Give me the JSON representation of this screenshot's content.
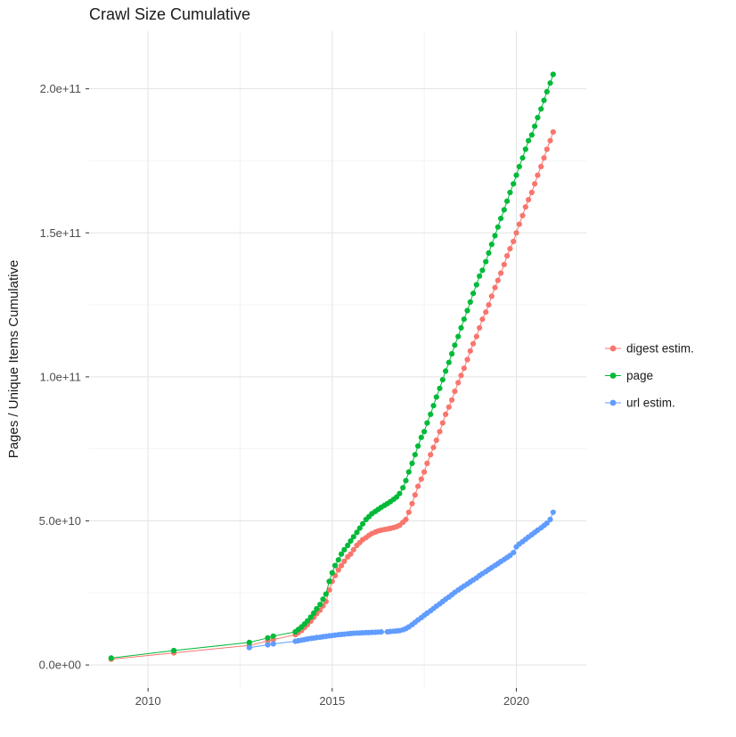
{
  "title": "Crawl Size Cumulative",
  "legend": {
    "items": [
      {
        "label": "digest estim.",
        "color": "#F8766D"
      },
      {
        "label": "page",
        "color": "#00BA38"
      },
      {
        "label": "url estim.",
        "color": "#619CFF"
      }
    ]
  },
  "colors": {
    "grid_major": "#e3e3e3",
    "grid_minor": "#f2f2f2",
    "tick": "#333333",
    "tick_text": "#4d4d4d"
  },
  "chart_data": {
    "type": "scatter",
    "title": "Crawl Size Cumulative",
    "xlabel": "",
    "ylabel": "Pages / Unique Items Cumulative",
    "y_unit": 1000000000,
    "x_domain": [
      2008.4,
      2021.9
    ],
    "y_domain": [
      -8,
      220
    ],
    "x_ticks": [
      {
        "v": 2010,
        "label": "2010"
      },
      {
        "v": 2015,
        "label": "2015"
      },
      {
        "v": 2020,
        "label": "2020"
      }
    ],
    "y_ticks": [
      {
        "v": 0,
        "label": "0.0e+00"
      },
      {
        "v": 50,
        "label": "5.0e+10"
      },
      {
        "v": 100,
        "label": "1.0e+11"
      },
      {
        "v": 150,
        "label": "1.5e+11"
      },
      {
        "v": 200,
        "label": "2.0e+11"
      }
    ],
    "x_minor": [
      2012.5,
      2017.5
    ],
    "y_minor": [
      25,
      75,
      125,
      175
    ],
    "grid": true,
    "legend_position": "right",
    "series": [
      {
        "name": "digest estim.",
        "color": "#F8766D",
        "points": [
          [
            2009.0,
            2
          ],
          [
            2010.7,
            4.2
          ],
          [
            2012.75,
            6.8
          ],
          [
            2013.25,
            8.3
          ],
          [
            2013.4,
            8.8
          ],
          [
            2014.0,
            10.5
          ],
          [
            2014.08,
            11.2
          ],
          [
            2014.17,
            12
          ],
          [
            2014.25,
            13
          ],
          [
            2014.33,
            14
          ],
          [
            2014.42,
            15.2
          ],
          [
            2014.5,
            16.5
          ],
          [
            2014.58,
            17.8
          ],
          [
            2014.67,
            19
          ],
          [
            2014.75,
            20.5
          ],
          [
            2014.83,
            22
          ],
          [
            2014.92,
            26
          ],
          [
            2015.0,
            29
          ],
          [
            2015.08,
            31
          ],
          [
            2015.17,
            33
          ],
          [
            2015.25,
            34.5
          ],
          [
            2015.33,
            36
          ],
          [
            2015.42,
            37.5
          ],
          [
            2015.5,
            38.5
          ],
          [
            2015.58,
            40
          ],
          [
            2015.67,
            41.5
          ],
          [
            2015.75,
            42.5
          ],
          [
            2015.83,
            43.5
          ],
          [
            2015.92,
            44.2
          ],
          [
            2016.0,
            45
          ],
          [
            2016.08,
            45.6
          ],
          [
            2016.17,
            46.1
          ],
          [
            2016.25,
            46.5
          ],
          [
            2016.33,
            46.8
          ],
          [
            2016.42,
            47
          ],
          [
            2016.5,
            47.2
          ],
          [
            2016.58,
            47.4
          ],
          [
            2016.67,
            47.7
          ],
          [
            2016.75,
            48
          ],
          [
            2016.83,
            48.5
          ],
          [
            2016.92,
            49.5
          ],
          [
            2017.0,
            50.5
          ],
          [
            2017.08,
            53
          ],
          [
            2017.17,
            56
          ],
          [
            2017.25,
            59
          ],
          [
            2017.33,
            62
          ],
          [
            2017.42,
            64.5
          ],
          [
            2017.5,
            67
          ],
          [
            2017.58,
            70
          ],
          [
            2017.67,
            73
          ],
          [
            2017.75,
            75.5
          ],
          [
            2017.83,
            78
          ],
          [
            2017.92,
            81
          ],
          [
            2018.0,
            84
          ],
          [
            2018.08,
            87
          ],
          [
            2018.17,
            89.5
          ],
          [
            2018.25,
            92
          ],
          [
            2018.33,
            95
          ],
          [
            2018.42,
            98
          ],
          [
            2018.5,
            100.5
          ],
          [
            2018.58,
            103
          ],
          [
            2018.67,
            106
          ],
          [
            2018.75,
            109
          ],
          [
            2018.83,
            111.5
          ],
          [
            2018.92,
            114
          ],
          [
            2019.0,
            117
          ],
          [
            2019.08,
            120
          ],
          [
            2019.17,
            122.5
          ],
          [
            2019.25,
            125
          ],
          [
            2019.33,
            128
          ],
          [
            2019.42,
            131
          ],
          [
            2019.5,
            133.5
          ],
          [
            2019.58,
            136
          ],
          [
            2019.67,
            139
          ],
          [
            2019.75,
            142
          ],
          [
            2019.83,
            144.5
          ],
          [
            2019.92,
            147
          ],
          [
            2020.0,
            150
          ],
          [
            2020.08,
            153
          ],
          [
            2020.17,
            156
          ],
          [
            2020.25,
            159
          ],
          [
            2020.33,
            161.5
          ],
          [
            2020.42,
            164
          ],
          [
            2020.5,
            167
          ],
          [
            2020.58,
            170
          ],
          [
            2020.67,
            173
          ],
          [
            2020.75,
            176
          ],
          [
            2020.83,
            179
          ],
          [
            2020.92,
            182
          ],
          [
            2021.0,
            185
          ]
        ]
      },
      {
        "name": "page",
        "color": "#00BA38",
        "points": [
          [
            2009.0,
            2.4
          ],
          [
            2010.7,
            5
          ],
          [
            2012.75,
            7.8
          ],
          [
            2013.25,
            9.4
          ],
          [
            2013.4,
            10
          ],
          [
            2014.0,
            11.5
          ],
          [
            2014.08,
            12.3
          ],
          [
            2014.17,
            13.2
          ],
          [
            2014.25,
            14.2
          ],
          [
            2014.33,
            15.3
          ],
          [
            2014.42,
            16.6
          ],
          [
            2014.5,
            18
          ],
          [
            2014.58,
            19.5
          ],
          [
            2014.67,
            21
          ],
          [
            2014.75,
            22.8
          ],
          [
            2014.83,
            24.6
          ],
          [
            2014.92,
            29
          ],
          [
            2015.0,
            32
          ],
          [
            2015.08,
            34.5
          ],
          [
            2015.17,
            36.5
          ],
          [
            2015.25,
            38.5
          ],
          [
            2015.33,
            40
          ],
          [
            2015.42,
            41.5
          ],
          [
            2015.5,
            43
          ],
          [
            2015.58,
            44.5
          ],
          [
            2015.67,
            46
          ],
          [
            2015.75,
            47.5
          ],
          [
            2015.83,
            49
          ],
          [
            2015.92,
            50.5
          ],
          [
            2016.0,
            51.5
          ],
          [
            2016.08,
            52.5
          ],
          [
            2016.17,
            53.3
          ],
          [
            2016.25,
            54
          ],
          [
            2016.33,
            54.7
          ],
          [
            2016.42,
            55.4
          ],
          [
            2016.5,
            56
          ],
          [
            2016.58,
            56.7
          ],
          [
            2016.67,
            57.5
          ],
          [
            2016.75,
            58.3
          ],
          [
            2016.83,
            59.5
          ],
          [
            2016.92,
            61.5
          ],
          [
            2017.0,
            64
          ],
          [
            2017.08,
            67
          ],
          [
            2017.17,
            70
          ],
          [
            2017.25,
            73
          ],
          [
            2017.33,
            76
          ],
          [
            2017.42,
            79
          ],
          [
            2017.5,
            81
          ],
          [
            2017.58,
            84
          ],
          [
            2017.67,
            87
          ],
          [
            2017.75,
            90
          ],
          [
            2017.83,
            93
          ],
          [
            2017.92,
            96
          ],
          [
            2018.0,
            99
          ],
          [
            2018.08,
            102
          ],
          [
            2018.17,
            105
          ],
          [
            2018.25,
            108
          ],
          [
            2018.33,
            111
          ],
          [
            2018.42,
            114
          ],
          [
            2018.5,
            117
          ],
          [
            2018.58,
            120
          ],
          [
            2018.67,
            123
          ],
          [
            2018.75,
            126
          ],
          [
            2018.83,
            129
          ],
          [
            2018.92,
            132
          ],
          [
            2019.0,
            135
          ],
          [
            2019.08,
            137
          ],
          [
            2019.17,
            140
          ],
          [
            2019.25,
            143
          ],
          [
            2019.33,
            146
          ],
          [
            2019.42,
            149
          ],
          [
            2019.5,
            152
          ],
          [
            2019.58,
            155
          ],
          [
            2019.67,
            158
          ],
          [
            2019.75,
            161
          ],
          [
            2019.83,
            164
          ],
          [
            2019.92,
            167
          ],
          [
            2020.0,
            170
          ],
          [
            2020.08,
            173
          ],
          [
            2020.17,
            176
          ],
          [
            2020.25,
            179
          ],
          [
            2020.33,
            182
          ],
          [
            2020.42,
            184
          ],
          [
            2020.5,
            187
          ],
          [
            2020.58,
            190
          ],
          [
            2020.67,
            193
          ],
          [
            2020.75,
            196
          ],
          [
            2020.83,
            199
          ],
          [
            2020.92,
            202
          ],
          [
            2021.0,
            205
          ]
        ]
      },
      {
        "name": "url estim.",
        "color": "#619CFF",
        "points": [
          [
            2012.75,
            6
          ],
          [
            2013.25,
            7
          ],
          [
            2013.4,
            7.3
          ],
          [
            2014.0,
            8.2
          ],
          [
            2014.08,
            8.4
          ],
          [
            2014.17,
            8.6
          ],
          [
            2014.25,
            8.8
          ],
          [
            2014.33,
            9
          ],
          [
            2014.42,
            9.2
          ],
          [
            2014.5,
            9.3
          ],
          [
            2014.58,
            9.5
          ],
          [
            2014.67,
            9.6
          ],
          [
            2014.75,
            9.8
          ],
          [
            2014.83,
            9.9
          ],
          [
            2014.92,
            10.1
          ],
          [
            2015.0,
            10.2
          ],
          [
            2015.08,
            10.35
          ],
          [
            2015.17,
            10.5
          ],
          [
            2015.25,
            10.6
          ],
          [
            2015.33,
            10.7
          ],
          [
            2015.42,
            10.8
          ],
          [
            2015.5,
            10.9
          ],
          [
            2015.58,
            11
          ],
          [
            2015.67,
            11.05
          ],
          [
            2015.75,
            11.1
          ],
          [
            2015.83,
            11.15
          ],
          [
            2015.92,
            11.2
          ],
          [
            2016.0,
            11.25
          ],
          [
            2016.08,
            11.3
          ],
          [
            2016.17,
            11.35
          ],
          [
            2016.25,
            11.4
          ],
          [
            2016.33,
            11.45
          ],
          [
            2016.5,
            11.5
          ],
          [
            2016.58,
            11.6
          ],
          [
            2016.67,
            11.7
          ],
          [
            2016.75,
            11.8
          ],
          [
            2016.83,
            11.9
          ],
          [
            2016.92,
            12.2
          ],
          [
            2017.0,
            12.6
          ],
          [
            2017.08,
            13.2
          ],
          [
            2017.17,
            14
          ],
          [
            2017.25,
            14.8
          ],
          [
            2017.33,
            15.6
          ],
          [
            2017.42,
            16.4
          ],
          [
            2017.5,
            17.2
          ],
          [
            2017.58,
            18
          ],
          [
            2017.67,
            18.8
          ],
          [
            2017.75,
            19.6
          ],
          [
            2017.83,
            20.4
          ],
          [
            2017.92,
            21.2
          ],
          [
            2018.0,
            22
          ],
          [
            2018.08,
            22.8
          ],
          [
            2018.17,
            23.6
          ],
          [
            2018.25,
            24.4
          ],
          [
            2018.33,
            25.2
          ],
          [
            2018.42,
            26
          ],
          [
            2018.5,
            26.7
          ],
          [
            2018.58,
            27.4
          ],
          [
            2018.67,
            28.1
          ],
          [
            2018.75,
            28.8
          ],
          [
            2018.83,
            29.5
          ],
          [
            2018.92,
            30.2
          ],
          [
            2019.0,
            31
          ],
          [
            2019.08,
            31.7
          ],
          [
            2019.17,
            32.4
          ],
          [
            2019.25,
            33.1
          ],
          [
            2019.33,
            33.8
          ],
          [
            2019.42,
            34.5
          ],
          [
            2019.5,
            35.2
          ],
          [
            2019.58,
            35.9
          ],
          [
            2019.67,
            36.6
          ],
          [
            2019.75,
            37.3
          ],
          [
            2019.83,
            38
          ],
          [
            2019.92,
            39
          ],
          [
            2020.0,
            41
          ],
          [
            2020.08,
            42
          ],
          [
            2020.17,
            42.8
          ],
          [
            2020.25,
            43.6
          ],
          [
            2020.33,
            44.4
          ],
          [
            2020.42,
            45.2
          ],
          [
            2020.5,
            46
          ],
          [
            2020.58,
            46.8
          ],
          [
            2020.67,
            47.6
          ],
          [
            2020.75,
            48.4
          ],
          [
            2020.83,
            49.2
          ],
          [
            2020.92,
            50.5
          ],
          [
            2021.0,
            53
          ]
        ]
      }
    ]
  }
}
